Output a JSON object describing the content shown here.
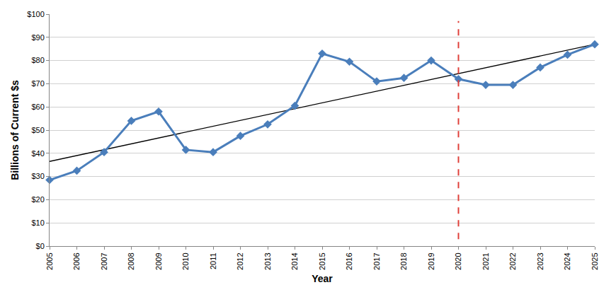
{
  "chart_data": {
    "type": "line",
    "x_label": "Year",
    "y_label": "Billions of Current $s",
    "x": [
      2005,
      2006,
      2007,
      2008,
      2009,
      2010,
      2011,
      2012,
      2013,
      2014,
      2015,
      2016,
      2017,
      2018,
      2019,
      2020,
      2021,
      2022,
      2023,
      2024,
      2025
    ],
    "values": [
      28.5,
      32.5,
      40.5,
      54,
      58,
      41.5,
      40.5,
      47.5,
      52.5,
      60.5,
      83,
      79.5,
      71,
      72.5,
      80,
      72,
      69.5,
      69.5,
      77,
      82.5,
      87
    ],
    "color": "#4a7ebb",
    "marker": "diamond",
    "line_style": "solid",
    "xlim": [
      2005,
      2025
    ],
    "xticks": [
      2005,
      2006,
      2007,
      2008,
      2009,
      2010,
      2011,
      2012,
      2013,
      2014,
      2015,
      2016,
      2017,
      2018,
      2019,
      2020,
      2021,
      2022,
      2023,
      2024,
      2025
    ],
    "ylim": [
      0,
      100
    ],
    "yticks": [
      {
        "value": 0,
        "label": "$0"
      },
      {
        "value": 10,
        "label": "$10"
      },
      {
        "value": 20,
        "label": "$20"
      },
      {
        "value": 30,
        "label": "$30"
      },
      {
        "value": 40,
        "label": "$40"
      },
      {
        "value": 50,
        "label": "$50"
      },
      {
        "value": 60,
        "label": "$60"
      },
      {
        "value": 70,
        "label": "$70"
      },
      {
        "value": 80,
        "label": "$80"
      },
      {
        "value": 90,
        "label": "$90"
      },
      {
        "value": 100,
        "label": "$100"
      }
    ],
    "grid": true,
    "trend": {
      "x": [
        2005,
        2025
      ],
      "values": [
        36.5,
        87
      ],
      "color": "#000000",
      "line_style": "solid"
    },
    "reference_line": {
      "x": 2020,
      "y": [
        3,
        97
      ],
      "color": "#e0403a",
      "line_style": "dash"
    }
  }
}
